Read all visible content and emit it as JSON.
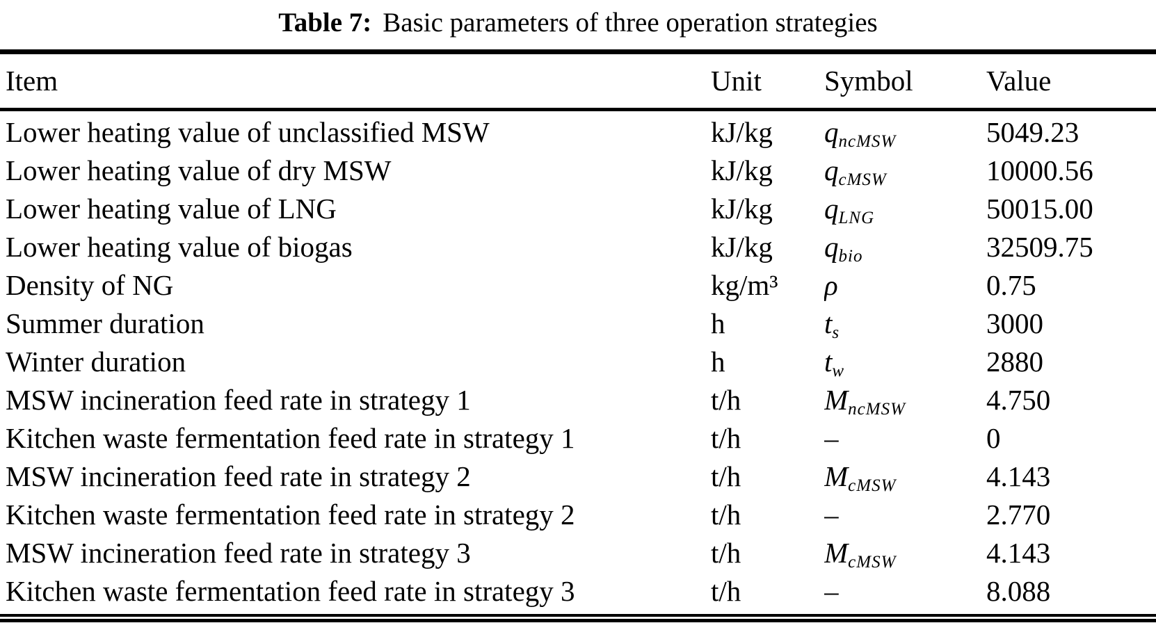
{
  "caption": {
    "label": "Table 7:",
    "text": "Basic parameters of three operation strategies"
  },
  "table": {
    "columns": [
      "Item",
      "Unit",
      "Symbol",
      "Value"
    ],
    "rows": [
      {
        "item": "Lower heating value of unclassified MSW",
        "unit": "kJ/kg",
        "symbol": {
          "base": "q",
          "sub": "ncMSW",
          "italic": true
        },
        "value": "5049.23"
      },
      {
        "item": "Lower heating value of dry MSW",
        "unit": "kJ/kg",
        "symbol": {
          "base": "q",
          "sub": "cMSW",
          "italic": true
        },
        "value": "10000.56"
      },
      {
        "item": "Lower heating value of LNG",
        "unit": "kJ/kg",
        "symbol": {
          "base": "q",
          "sub": "LNG",
          "italic": true
        },
        "value": "50015.00"
      },
      {
        "item": "Lower heating value of biogas",
        "unit": "kJ/kg",
        "symbol": {
          "base": "q",
          "sub": "bio",
          "italic": true
        },
        "value": "32509.75"
      },
      {
        "item": "Density of NG",
        "unit": "kg/m³",
        "symbol": {
          "base": "ρ",
          "sub": "",
          "italic": true
        },
        "value": "0.75"
      },
      {
        "item": "Summer duration",
        "unit": "h",
        "symbol": {
          "base": "t",
          "sub": "s",
          "italic": true
        },
        "value": "3000"
      },
      {
        "item": "Winter duration",
        "unit": "h",
        "symbol": {
          "base": "t",
          "sub": "w",
          "italic": true
        },
        "value": "2880"
      },
      {
        "item": "MSW incineration feed rate in strategy 1",
        "unit": "t/h",
        "symbol": {
          "base": "M",
          "sub": "ncMSW",
          "italic": true
        },
        "value": "4.750"
      },
      {
        "item": "Kitchen waste fermentation feed rate in strategy 1",
        "unit": "t/h",
        "symbol": {
          "base": "–",
          "sub": "",
          "italic": false
        },
        "value": "0"
      },
      {
        "item": "MSW incineration feed rate in strategy 2",
        "unit": "t/h",
        "symbol": {
          "base": "M",
          "sub": "cMSW",
          "italic": true
        },
        "value": "4.143"
      },
      {
        "item": "Kitchen waste fermentation feed rate in strategy 2",
        "unit": "t/h",
        "symbol": {
          "base": "–",
          "sub": "",
          "italic": false
        },
        "value": "2.770"
      },
      {
        "item": "MSW incineration feed rate in strategy 3",
        "unit": "t/h",
        "symbol": {
          "base": "M",
          "sub": "cMSW",
          "italic": true
        },
        "value": "4.143"
      },
      {
        "item": "Kitchen waste fermentation feed rate in strategy 3",
        "unit": "t/h",
        "symbol": {
          "base": "–",
          "sub": "",
          "italic": false
        },
        "value": "8.088"
      }
    ]
  }
}
